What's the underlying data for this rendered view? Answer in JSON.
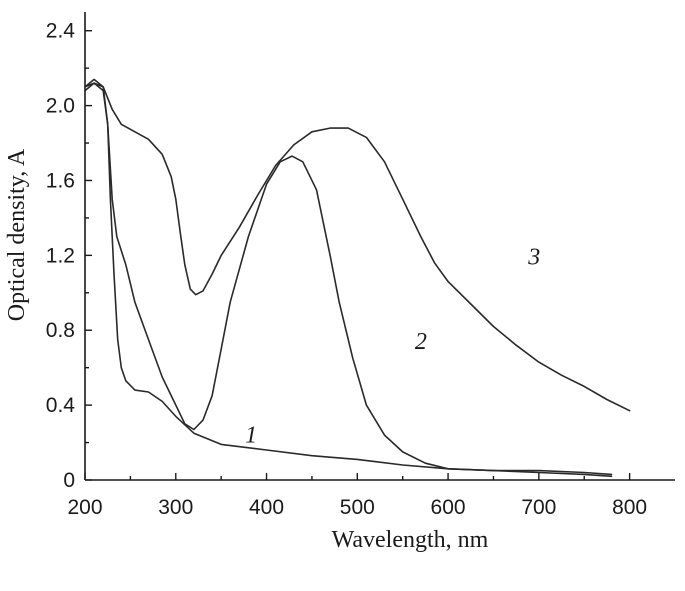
{
  "chart_data": {
    "type": "line",
    "title": "",
    "xlabel": "Wavelength, nm",
    "ylabel": "Optical density, A",
    "xlim": [
      200,
      850
    ],
    "ylim": [
      0,
      2.5
    ],
    "xticks": [
      200,
      300,
      400,
      500,
      600,
      700,
      800
    ],
    "yticks": [
      0,
      0.4,
      0.8,
      1.2,
      1.6,
      2.0,
      2.4
    ],
    "xtick_labels": [
      "200",
      "300",
      "400",
      "500",
      "600",
      "700",
      "800"
    ],
    "ytick_labels": [
      "0",
      "0.4",
      "0.8",
      "1.2",
      "1.6",
      "2.0",
      "2.4"
    ],
    "grid": false,
    "series": [
      {
        "name": "1",
        "label_at": [
          383,
          0.2
        ],
        "points": [
          [
            200,
            2.1
          ],
          [
            210,
            2.12
          ],
          [
            220,
            2.08
          ],
          [
            225,
            1.9
          ],
          [
            228,
            1.5
          ],
          [
            232,
            1.1
          ],
          [
            236,
            0.75
          ],
          [
            240,
            0.6
          ],
          [
            245,
            0.53
          ],
          [
            255,
            0.48
          ],
          [
            270,
            0.47
          ],
          [
            285,
            0.42
          ],
          [
            300,
            0.34
          ],
          [
            320,
            0.25
          ],
          [
            350,
            0.19
          ],
          [
            400,
            0.16
          ],
          [
            450,
            0.13
          ],
          [
            500,
            0.11
          ],
          [
            550,
            0.08
          ],
          [
            600,
            0.06
          ],
          [
            650,
            0.05
          ],
          [
            700,
            0.04
          ],
          [
            750,
            0.03
          ],
          [
            780,
            0.02
          ]
        ]
      },
      {
        "name": "2",
        "label_at": [
          570,
          0.7
        ],
        "points": [
          [
            200,
            2.08
          ],
          [
            210,
            2.12
          ],
          [
            220,
            2.1
          ],
          [
            225,
            1.9
          ],
          [
            230,
            1.5
          ],
          [
            235,
            1.3
          ],
          [
            245,
            1.15
          ],
          [
            255,
            0.95
          ],
          [
            270,
            0.75
          ],
          [
            285,
            0.55
          ],
          [
            300,
            0.4
          ],
          [
            310,
            0.3
          ],
          [
            320,
            0.27
          ],
          [
            330,
            0.32
          ],
          [
            340,
            0.45
          ],
          [
            350,
            0.7
          ],
          [
            360,
            0.95
          ],
          [
            380,
            1.3
          ],
          [
            400,
            1.58
          ],
          [
            415,
            1.7
          ],
          [
            428,
            1.73
          ],
          [
            440,
            1.7
          ],
          [
            455,
            1.55
          ],
          [
            470,
            1.2
          ],
          [
            480,
            0.95
          ],
          [
            495,
            0.65
          ],
          [
            510,
            0.4
          ],
          [
            530,
            0.24
          ],
          [
            550,
            0.15
          ],
          [
            575,
            0.09
          ],
          [
            600,
            0.06
          ],
          [
            650,
            0.05
          ],
          [
            700,
            0.05
          ],
          [
            750,
            0.04
          ],
          [
            780,
            0.03
          ]
        ]
      },
      {
        "name": "3",
        "label_at": [
          695,
          1.15
        ],
        "points": [
          [
            200,
            2.1
          ],
          [
            210,
            2.14
          ],
          [
            220,
            2.1
          ],
          [
            230,
            1.98
          ],
          [
            240,
            1.9
          ],
          [
            255,
            1.86
          ],
          [
            270,
            1.82
          ],
          [
            285,
            1.74
          ],
          [
            295,
            1.62
          ],
          [
            300,
            1.5
          ],
          [
            305,
            1.32
          ],
          [
            310,
            1.15
          ],
          [
            316,
            1.02
          ],
          [
            322,
            0.99
          ],
          [
            330,
            1.01
          ],
          [
            340,
            1.1
          ],
          [
            350,
            1.2
          ],
          [
            370,
            1.35
          ],
          [
            390,
            1.52
          ],
          [
            410,
            1.68
          ],
          [
            430,
            1.79
          ],
          [
            450,
            1.86
          ],
          [
            470,
            1.88
          ],
          [
            490,
            1.88
          ],
          [
            510,
            1.83
          ],
          [
            530,
            1.7
          ],
          [
            550,
            1.5
          ],
          [
            570,
            1.3
          ],
          [
            585,
            1.16
          ],
          [
            600,
            1.06
          ],
          [
            625,
            0.94
          ],
          [
            650,
            0.82
          ],
          [
            675,
            0.72
          ],
          [
            700,
            0.63
          ],
          [
            725,
            0.56
          ],
          [
            750,
            0.5
          ],
          [
            775,
            0.43
          ],
          [
            800,
            0.37
          ]
        ]
      }
    ]
  }
}
